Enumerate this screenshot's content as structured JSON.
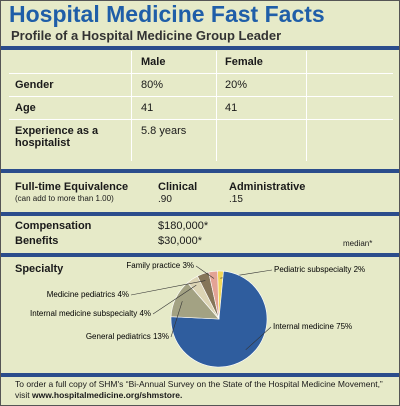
{
  "header": {
    "title": "Hospital Medicine Fast Facts",
    "subtitle": "Profile of a Hospital Medicine Group Leader"
  },
  "table": {
    "columns": [
      "Male",
      "Female"
    ],
    "rows": [
      [
        "Gender",
        "80%",
        "20%"
      ],
      [
        "Age",
        "41",
        "41"
      ],
      [
        "Experience as a hospitalist",
        "5.8 years"
      ]
    ]
  },
  "fte": {
    "label": "Full-time Equivalence",
    "note": "(can add to more than 1.00)",
    "columns": [
      {
        "heading": "Clinical",
        "value": ".90"
      },
      {
        "heading": "Administrative",
        "value": ".15"
      }
    ]
  },
  "compensation": {
    "rows": [
      {
        "label": "Compensation",
        "value": "$180,000*"
      },
      {
        "label": "Benefits",
        "value": "$30,000*"
      }
    ],
    "note": "median*"
  },
  "specialty": {
    "type": "pie",
    "title": "Specialty",
    "labels": [
      "Pediatric subspecialty",
      "Internal medicine",
      "General pediatrics",
      "Internal medicine subspecialty",
      "Medicine pediatrics",
      "Family practice"
    ],
    "values": [
      2,
      75,
      13,
      4,
      4,
      3
    ],
    "value_labels": [
      "2%",
      "75%",
      "13%",
      "4%",
      "4%",
      "3%"
    ],
    "colors": [
      "#f1d75a",
      "#2f5d9e",
      "#a3a283",
      "#dcd4b4",
      "#857559",
      "#e3a395"
    ]
  },
  "footer": {
    "text": "To order a full copy of SHM's “Bi-Annual Survey on the State of the Hospital Medicine Movement,” visit",
    "link": "www.hospitalmedicine.org/shmstore."
  }
}
